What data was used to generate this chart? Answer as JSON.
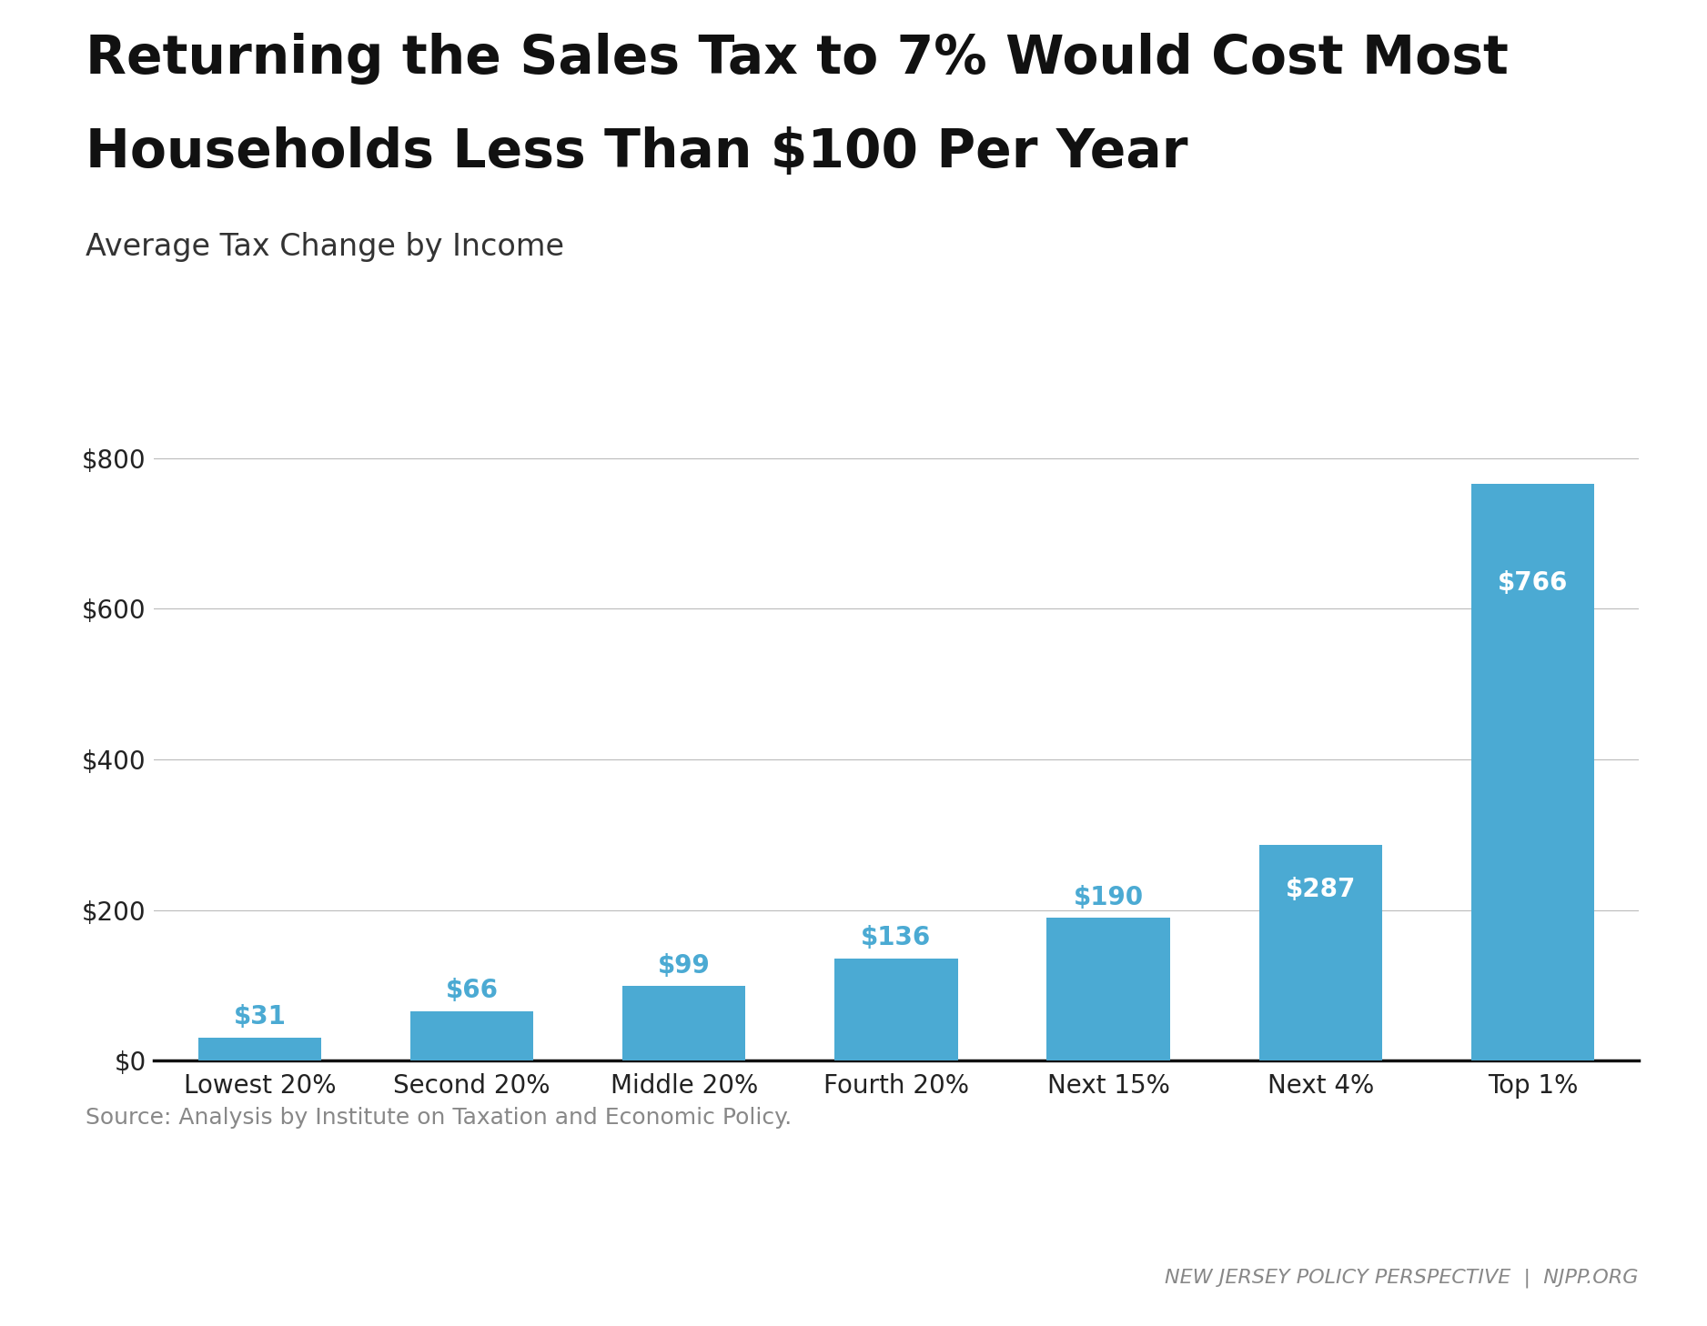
{
  "title_line1": "Returning the Sales Tax to 7% Would Cost Most",
  "title_line2": "Households Less Than $100 Per Year",
  "subtitle": "Average Tax Change by Income",
  "categories": [
    "Lowest 20%",
    "Second 20%",
    "Middle 20%",
    "Fourth 20%",
    "Next 15%",
    "Next 4%",
    "Top 1%"
  ],
  "values": [
    31,
    66,
    99,
    136,
    190,
    287,
    766
  ],
  "bar_color": "#4BAAD3",
  "label_color_outside": "#4BAAD3",
  "label_color_inside": "#ffffff",
  "inside_threshold": 200,
  "ylim": [
    0,
    880
  ],
  "yticks": [
    0,
    200,
    400,
    600,
    800
  ],
  "ytick_labels": [
    "$0",
    "$200",
    "$400",
    "$600",
    "$800"
  ],
  "source_text": "Source: Analysis by Institute on Taxation and Economic Policy.",
  "footer_text": "NEW JERSEY POLICY PERSPECTIVE  |  NJPP.ORG",
  "title_fontsize": 42,
  "subtitle_fontsize": 24,
  "tick_fontsize": 20,
  "label_fontsize": 20,
  "source_fontsize": 18,
  "footer_fontsize": 16,
  "background_color": "#ffffff",
  "grid_color": "#bbbbbb",
  "spine_color": "#111111",
  "footer_bar_color": "#4a4a4a",
  "title_color": "#111111",
  "subtitle_color": "#333333",
  "source_color": "#888888",
  "footer_color": "#888888"
}
